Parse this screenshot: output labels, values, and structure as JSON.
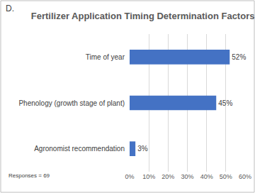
{
  "chart_data": {
    "type": "bar",
    "orientation": "horizontal",
    "title": "Fertilizer Application Timing Determination Factors",
    "annotations": [
      "D.",
      "Responses = 69"
    ],
    "categories": [
      "Time of year",
      "Phenology (growth stage of plant)",
      "Agronomist recommendation"
    ],
    "values": [
      52,
      45,
      3
    ],
    "value_labels": [
      "52%",
      "45%",
      "3%"
    ],
    "data_labels": true,
    "color": "#4472c4",
    "xlim": [
      0,
      60
    ],
    "xticks": [
      {
        "value": 0,
        "label": "0%"
      },
      {
        "value": 10,
        "label": "10%"
      },
      {
        "value": 20,
        "label": "20%"
      },
      {
        "value": 30,
        "label": "30%"
      },
      {
        "value": 40,
        "label": "40%"
      },
      {
        "value": 50,
        "label": "50%"
      },
      {
        "value": 60,
        "label": "60%"
      }
    ],
    "grid": true
  }
}
